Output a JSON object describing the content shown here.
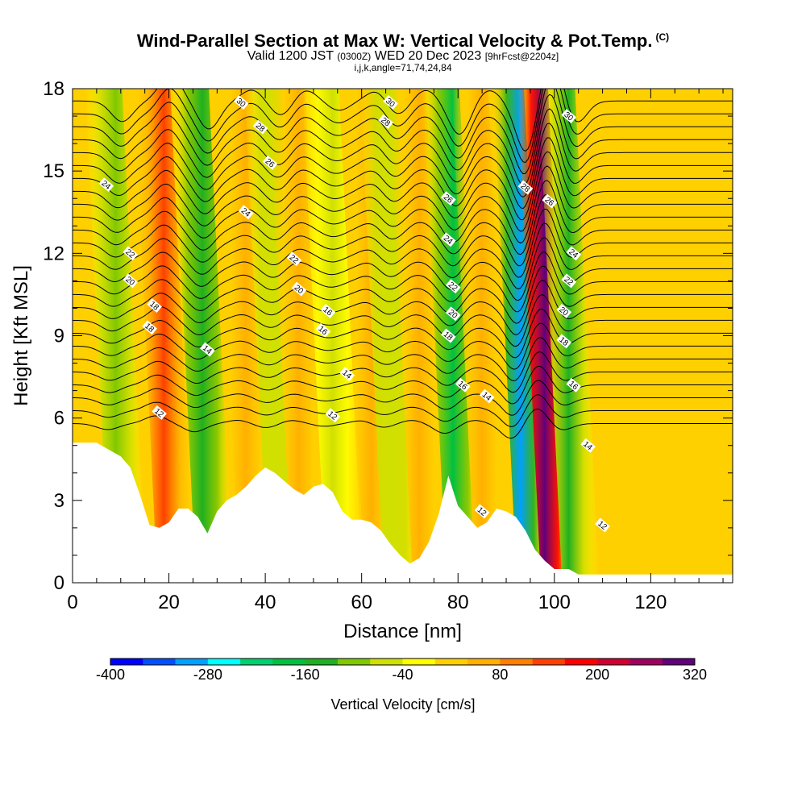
{
  "title": {
    "main": "Wind-Parallel Section at Max W: Vertical Velocity & Pot.Temp.",
    "copyright": "(C)",
    "valid_prefix": "Valid 1200 JST",
    "utc": "(0300Z)",
    "valid_date": "WED 20 Dec 2023",
    "forecast": "[9hrFcst@2204z]",
    "indices": "i,j,k,angle=71,74,24,84"
  },
  "chart_data": {
    "type": "heatmap",
    "xlabel": "Distance [nm]",
    "ylabel": "Height [Kft MSL]",
    "xlim": [
      0,
      137
    ],
    "ylim": [
      0,
      18
    ],
    "x_ticks": [
      "0",
      "20",
      "40",
      "60",
      "80",
      "100",
      "120"
    ],
    "y_ticks": [
      "0",
      "3",
      "6",
      "9",
      "12",
      "15",
      "18"
    ],
    "colorbar": {
      "label": "Vertical Velocity [cm/s]",
      "levels": [
        -400,
        -360,
        -320,
        -280,
        -240,
        -200,
        -160,
        -120,
        -80,
        -40,
        0,
        40,
        80,
        120,
        160,
        200,
        240,
        280,
        320
      ],
      "colors": [
        "#0000ff",
        "#0050ff",
        "#00a0ff",
        "#00ffff",
        "#00d070",
        "#00c040",
        "#20b020",
        "#80c800",
        "#d0e000",
        "#ffff00",
        "#ffd000",
        "#ffb000",
        "#ff8000",
        "#ff4000",
        "#ff0000",
        "#d00030",
        "#a00060",
        "#60007a"
      ],
      "tick_labels": [
        "-400",
        "-280",
        "-160",
        "-40",
        "80",
        "200",
        "320"
      ]
    },
    "vertical_velocity_bands": [
      {
        "x": 10,
        "w": -110,
        "sign": "down"
      },
      {
        "x": 20,
        "w": 140,
        "sign": "up"
      },
      {
        "x": 28,
        "w": -150,
        "sign": "down"
      },
      {
        "x": 37,
        "w": 60,
        "sign": "up"
      },
      {
        "x": 43,
        "w": -80,
        "sign": "down"
      },
      {
        "x": 48,
        "w": 60,
        "sign": "up"
      },
      {
        "x": 55,
        "w": -50,
        "sign": "down"
      },
      {
        "x": 63,
        "w": 60,
        "sign": "up"
      },
      {
        "x": 67,
        "w": -80,
        "sign": "down"
      },
      {
        "x": 73,
        "w": 60,
        "sign": "up"
      },
      {
        "x": 80,
        "w": -180,
        "sign": "down"
      },
      {
        "x": 86,
        "w": 60,
        "sign": "up"
      },
      {
        "x": 94,
        "w": -290,
        "sign": "down"
      },
      {
        "x": 99,
        "w": 300,
        "sign": "up"
      },
      {
        "x": 104,
        "w": -130,
        "sign": "down"
      }
    ],
    "terrain": [
      [
        0,
        5.1
      ],
      [
        5,
        5.1
      ],
      [
        8,
        4.8
      ],
      [
        10,
        4.6
      ],
      [
        12,
        4.2
      ],
      [
        14,
        3.2
      ],
      [
        16,
        2.1
      ],
      [
        18,
        2.0
      ],
      [
        20,
        2.2
      ],
      [
        22,
        2.7
      ],
      [
        24,
        2.7
      ],
      [
        26,
        2.4
      ],
      [
        28,
        1.8
      ],
      [
        30,
        2.6
      ],
      [
        32,
        3.0
      ],
      [
        34,
        3.2
      ],
      [
        36,
        3.5
      ],
      [
        38,
        3.9
      ],
      [
        40,
        4.2
      ],
      [
        42,
        4.0
      ],
      [
        44,
        3.7
      ],
      [
        46,
        3.4
      ],
      [
        48,
        3.2
      ],
      [
        50,
        3.5
      ],
      [
        52,
        3.6
      ],
      [
        54,
        3.3
      ],
      [
        56,
        2.6
      ],
      [
        58,
        2.3
      ],
      [
        60,
        2.3
      ],
      [
        62,
        2.2
      ],
      [
        64,
        1.9
      ],
      [
        66,
        1.4
      ],
      [
        68,
        1.0
      ],
      [
        70,
        0.7
      ],
      [
        72,
        0.9
      ],
      [
        74,
        1.5
      ],
      [
        76,
        2.5
      ],
      [
        78,
        3.9
      ],
      [
        80,
        2.8
      ],
      [
        82,
        2.4
      ],
      [
        84,
        2.0
      ],
      [
        86,
        2.2
      ],
      [
        88,
        2.7
      ],
      [
        90,
        2.6
      ],
      [
        92,
        2.4
      ],
      [
        94,
        1.9
      ],
      [
        96,
        1.2
      ],
      [
        98,
        0.8
      ],
      [
        100,
        0.5
      ],
      [
        103,
        0.5
      ],
      [
        105,
        0.3
      ],
      [
        137,
        0.3
      ]
    ],
    "pot_temp_contours": {
      "unit": "C",
      "labels": [
        {
          "value": "30",
          "x": 35,
          "y": 17.5
        },
        {
          "value": "28",
          "x": 39,
          "y": 16.6
        },
        {
          "value": "26",
          "x": 41,
          "y": 15.3
        },
        {
          "value": "24",
          "x": 7,
          "y": 14.5
        },
        {
          "value": "24",
          "x": 36,
          "y": 13.5
        },
        {
          "value": "22",
          "x": 12,
          "y": 12.0
        },
        {
          "value": "22",
          "x": 46,
          "y": 11.8
        },
        {
          "value": "20",
          "x": 12,
          "y": 11.0
        },
        {
          "value": "20",
          "x": 47,
          "y": 10.7
        },
        {
          "value": "18",
          "x": 17,
          "y": 10.1
        },
        {
          "value": "18",
          "x": 16,
          "y": 9.3
        },
        {
          "value": "16",
          "x": 53,
          "y": 9.9
        },
        {
          "value": "16",
          "x": 52,
          "y": 9.2
        },
        {
          "value": "14",
          "x": 28,
          "y": 8.5
        },
        {
          "value": "14",
          "x": 57,
          "y": 7.6
        },
        {
          "value": "12",
          "x": 18,
          "y": 6.2
        },
        {
          "value": "12",
          "x": 54,
          "y": 6.1
        },
        {
          "value": "30",
          "x": 66,
          "y": 17.5
        },
        {
          "value": "28",
          "x": 65,
          "y": 16.8
        },
        {
          "value": "26",
          "x": 78,
          "y": 14.0
        },
        {
          "value": "24",
          "x": 78,
          "y": 12.5
        },
        {
          "value": "22",
          "x": 79,
          "y": 10.8
        },
        {
          "value": "20",
          "x": 79,
          "y": 9.8
        },
        {
          "value": "18",
          "x": 78,
          "y": 9.0
        },
        {
          "value": "16",
          "x": 81,
          "y": 7.2
        },
        {
          "value": "14",
          "x": 86,
          "y": 6.8
        },
        {
          "value": "12",
          "x": 85,
          "y": 2.6
        },
        {
          "value": "30",
          "x": 103,
          "y": 17.0
        },
        {
          "value": "28",
          "x": 94,
          "y": 14.4
        },
        {
          "value": "26",
          "x": 99,
          "y": 13.9
        },
        {
          "value": "24",
          "x": 104,
          "y": 12.0
        },
        {
          "value": "22",
          "x": 103,
          "y": 11.0
        },
        {
          "value": "20",
          "x": 102,
          "y": 9.9
        },
        {
          "value": "18",
          "x": 102,
          "y": 8.8
        },
        {
          "value": "16",
          "x": 104,
          "y": 7.2
        },
        {
          "value": "14",
          "x": 107,
          "y": 5.0
        },
        {
          "value": "12",
          "x": 110,
          "y": 2.1
        }
      ]
    }
  }
}
